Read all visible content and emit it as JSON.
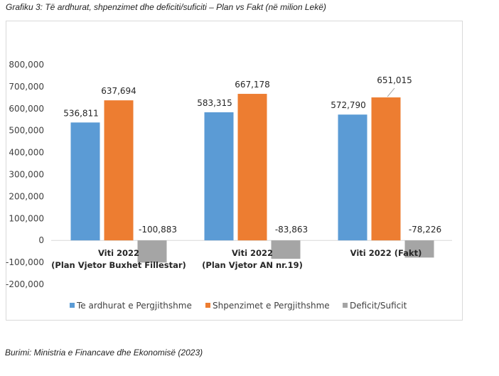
{
  "caption": "Grafiku 3: Të ardhurat, shpenzimet dhe deficiti/suficiti – Plan vs Fakt  (në milion Lekë)",
  "source": "Burimi: Ministria e Financave dhe Ekonomisë (2023)",
  "chart_data": {
    "type": "bar",
    "title": "Të ardhurat, shpenzimet dhe deficiti/suficiti – Plan vs Fakt (në milion Lekë)",
    "xlabel": "",
    "ylabel": "",
    "ylim": [
      -200000,
      800000
    ],
    "yticks": [
      800000,
      700000,
      600000,
      500000,
      400000,
      300000,
      200000,
      100000,
      0,
      -100000,
      -200000
    ],
    "ytick_labels": [
      "800,000",
      "700,000",
      "600,000",
      "500,000",
      "400,000",
      "300,000",
      "200,000",
      "100,000",
      "0",
      "-100,000",
      "-200,000"
    ],
    "grid": false,
    "legend_position": "bottom",
    "categories": [
      [
        "Viti 2022",
        "(Plan Vjetor Buxhet Fillestar)"
      ],
      [
        "Viti 2022",
        "(Plan Vjetor AN nr.19)"
      ],
      [
        "Viti 2022 (Fakt)"
      ]
    ],
    "series": [
      {
        "name": "Te ardhurat e Pergjithshme",
        "color": "#5B9BD5",
        "values": [
          536811,
          583315,
          572790
        ],
        "labels": [
          "536,811",
          "583,315",
          "572,790"
        ]
      },
      {
        "name": "Shpenzimet e Pergjithshme",
        "color": "#ED7D31",
        "values": [
          637694,
          667178,
          651015
        ],
        "labels": [
          "637,694",
          "667,178",
          "651,015"
        ]
      },
      {
        "name": "Deficit/Suficit",
        "color": "#A5A5A5",
        "values": [
          -100883,
          -83863,
          -78226
        ],
        "labels": [
          "-100,883",
          "-83,863",
          "-78,226"
        ]
      }
    ]
  }
}
